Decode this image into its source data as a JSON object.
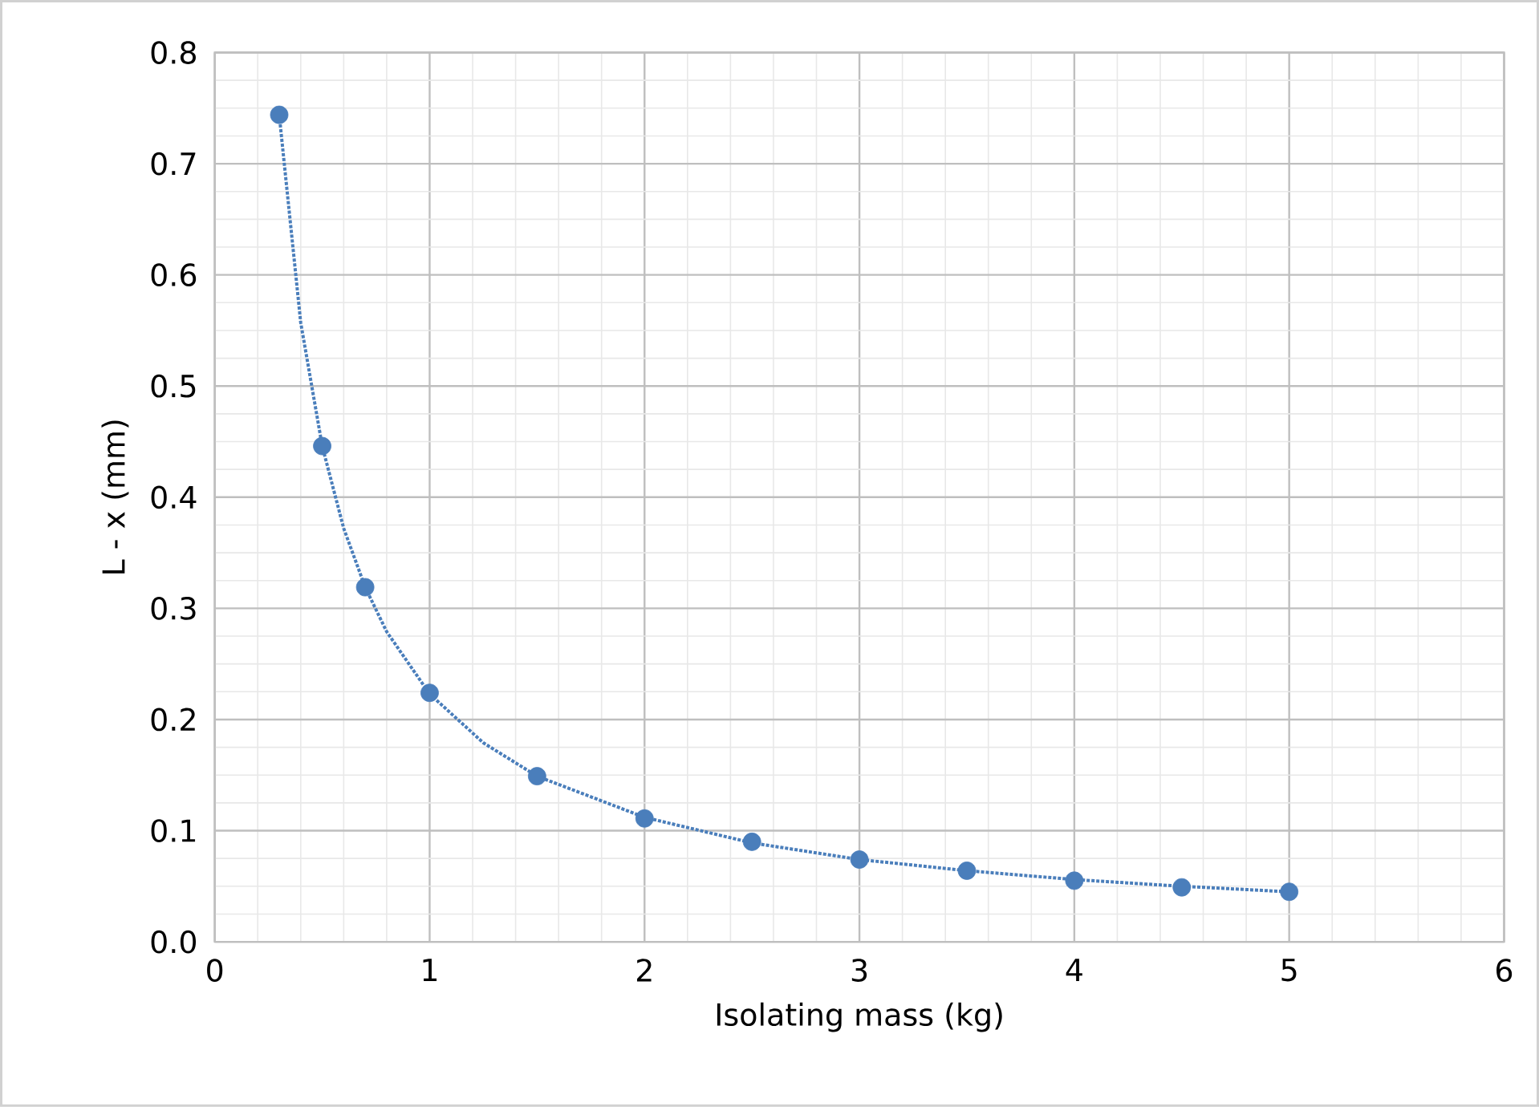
{
  "chart_data": {
    "type": "scatter",
    "xlabel": "Isolating mass (kg)",
    "ylabel": "L - x (mm)",
    "xlim": [
      0,
      6
    ],
    "ylim": [
      0,
      0.8
    ],
    "xticks": [
      0,
      1,
      2,
      3,
      4,
      5,
      6
    ],
    "yticks": [
      {
        "value": 0,
        "label": "0.0"
      },
      {
        "value": 0.1,
        "label": "0.1"
      },
      {
        "value": 0.2,
        "label": "0.2"
      },
      {
        "value": 0.3,
        "label": "0.3"
      },
      {
        "value": 0.4,
        "label": "0.4"
      },
      {
        "value": 0.5,
        "label": "0.5"
      },
      {
        "value": 0.6,
        "label": "0.6"
      },
      {
        "value": 0.7,
        "label": "0.7"
      },
      {
        "value": 0.8,
        "label": "0.8"
      }
    ],
    "grid": true,
    "series": [
      {
        "type": "line",
        "color": "#4a7ebb",
        "line_style": "dotted",
        "marker": "none",
        "x": [
          0.3,
          0.4,
          0.5,
          0.6,
          0.7,
          0.8,
          1,
          1.25,
          1.5,
          2,
          2.5,
          3,
          3.5,
          4,
          4.5,
          5
        ],
        "values": [
          0.744,
          0.557,
          0.446,
          0.372,
          0.319,
          0.279,
          0.223,
          0.179,
          0.149,
          0.112,
          0.089,
          0.074,
          0.064,
          0.056,
          0.05,
          0.045
        ]
      },
      {
        "color": "#4a7ebb",
        "marker": "circle",
        "x": [
          0.3,
          0.5,
          0.7,
          1,
          1.5,
          2,
          2.5,
          3,
          3.5,
          4,
          4.5,
          5
        ],
        "values": [
          0.744,
          0.446,
          0.319,
          0.224,
          0.149,
          0.111,
          0.09,
          0.074,
          0.064,
          0.055,
          0.049,
          0.045
        ]
      }
    ]
  }
}
